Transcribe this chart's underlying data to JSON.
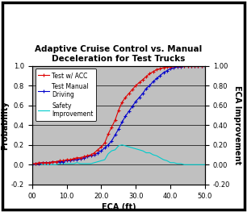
{
  "title": "Adaptive Cruise Control vs. Manual\nDeceleration for Test Trucks",
  "xlabel": "ECA (ft)",
  "ylabel_left": "Probability",
  "ylabel_right": "ECA Improvement",
  "xlim": [
    0,
    50
  ],
  "ylim": [
    -0.2,
    1.0
  ],
  "xtick_vals": [
    0,
    10.0,
    20.0,
    30.0,
    40.0,
    50.0
  ],
  "xtick_labels": [
    "00",
    "10.0",
    "20.0",
    "30.0",
    "40.0",
    "50.0"
  ],
  "ytick_vals": [
    -0.2,
    0.0,
    0.2,
    0.4,
    0.6,
    0.8,
    1.0
  ],
  "ytick_labels_left": [
    "-0.2",
    "0.0",
    "0.2",
    "0.4",
    "0.6",
    "0.8",
    "1.0"
  ],
  "ytick_labels_right": [
    "-0.20",
    "0.00",
    "0.20",
    "0.40",
    "0.60",
    "0.80",
    "1.00"
  ],
  "background_color": "#c0c0c0",
  "outer_border_color": "#000000",
  "legend_labels": [
    "Test w/ ACC",
    "Test Manual\nDriving",
    "Safety\nImprovement"
  ],
  "line_colors": [
    "#dd0000",
    "#0000cc",
    "#00cccc"
  ],
  "acc_x": [
    0,
    1,
    2,
    3,
    4,
    5,
    6,
    7,
    8,
    9,
    10,
    11,
    12,
    13,
    14,
    15,
    16,
    17,
    18,
    19,
    20,
    21,
    22,
    23,
    24,
    25,
    26,
    27,
    28,
    29,
    30,
    31,
    32,
    33,
    34,
    35,
    36,
    37,
    38,
    39,
    40,
    41,
    42,
    43,
    44,
    45,
    46,
    47,
    48,
    49,
    50
  ],
  "acc_y": [
    0.01,
    0.01,
    0.02,
    0.02,
    0.02,
    0.02,
    0.03,
    0.03,
    0.04,
    0.04,
    0.05,
    0.05,
    0.06,
    0.07,
    0.07,
    0.08,
    0.09,
    0.1,
    0.12,
    0.15,
    0.18,
    0.22,
    0.31,
    0.38,
    0.45,
    0.55,
    0.63,
    0.68,
    0.72,
    0.76,
    0.8,
    0.83,
    0.86,
    0.89,
    0.92,
    0.94,
    0.96,
    0.97,
    0.98,
    0.99,
    0.99,
    1.0,
    1.0,
    1.0,
    1.0,
    1.0,
    1.0,
    1.0,
    1.0,
    1.0,
    1.0
  ],
  "manual_x": [
    0,
    1,
    2,
    3,
    4,
    5,
    6,
    7,
    8,
    9,
    10,
    11,
    12,
    13,
    14,
    15,
    16,
    17,
    18,
    19,
    20,
    21,
    22,
    23,
    24,
    25,
    26,
    27,
    28,
    29,
    30,
    31,
    32,
    33,
    34,
    35,
    36,
    37,
    38,
    39,
    40,
    41,
    42,
    43,
    44,
    45,
    46,
    47,
    48,
    49,
    50
  ],
  "manual_y": [
    0.0,
    0.01,
    0.01,
    0.02,
    0.02,
    0.02,
    0.03,
    0.03,
    0.03,
    0.03,
    0.04,
    0.04,
    0.05,
    0.05,
    0.06,
    0.07,
    0.08,
    0.09,
    0.1,
    0.12,
    0.14,
    0.17,
    0.2,
    0.24,
    0.3,
    0.36,
    0.43,
    0.49,
    0.54,
    0.59,
    0.64,
    0.68,
    0.72,
    0.77,
    0.8,
    0.84,
    0.87,
    0.9,
    0.93,
    0.95,
    0.97,
    0.98,
    0.99,
    0.99,
    1.0,
    1.0,
    1.0,
    1.0,
    1.0,
    1.0,
    1.0
  ],
  "safety_x": [
    0,
    1,
    2,
    3,
    4,
    5,
    6,
    7,
    8,
    9,
    10,
    11,
    12,
    13,
    14,
    15,
    16,
    17,
    18,
    19,
    20,
    21,
    22,
    23,
    24,
    25,
    26,
    27,
    28,
    29,
    30,
    31,
    32,
    33,
    34,
    35,
    36,
    37,
    38,
    39,
    40,
    41,
    42,
    43,
    44,
    45,
    46,
    47,
    48,
    49,
    50
  ],
  "safety_y": [
    0.01,
    0.0,
    0.01,
    0.0,
    0.0,
    0.0,
    0.0,
    0.0,
    0.01,
    0.01,
    0.01,
    0.01,
    0.01,
    0.02,
    0.01,
    0.01,
    0.01,
    0.01,
    0.02,
    0.03,
    0.04,
    0.05,
    0.11,
    0.14,
    0.15,
    0.19,
    0.2,
    0.19,
    0.18,
    0.17,
    0.16,
    0.15,
    0.14,
    0.12,
    0.12,
    0.1,
    0.09,
    0.07,
    0.05,
    0.04,
    0.02,
    0.02,
    0.01,
    0.01,
    0.0,
    0.0,
    0.0,
    0.0,
    0.0,
    0.0,
    0.0
  ],
  "title_fontsize": 7.5,
  "axis_fontsize": 7,
  "tick_fontsize": 6,
  "legend_fontsize": 5.5,
  "fig_width": 3.06,
  "fig_height": 2.63,
  "dpi": 100
}
